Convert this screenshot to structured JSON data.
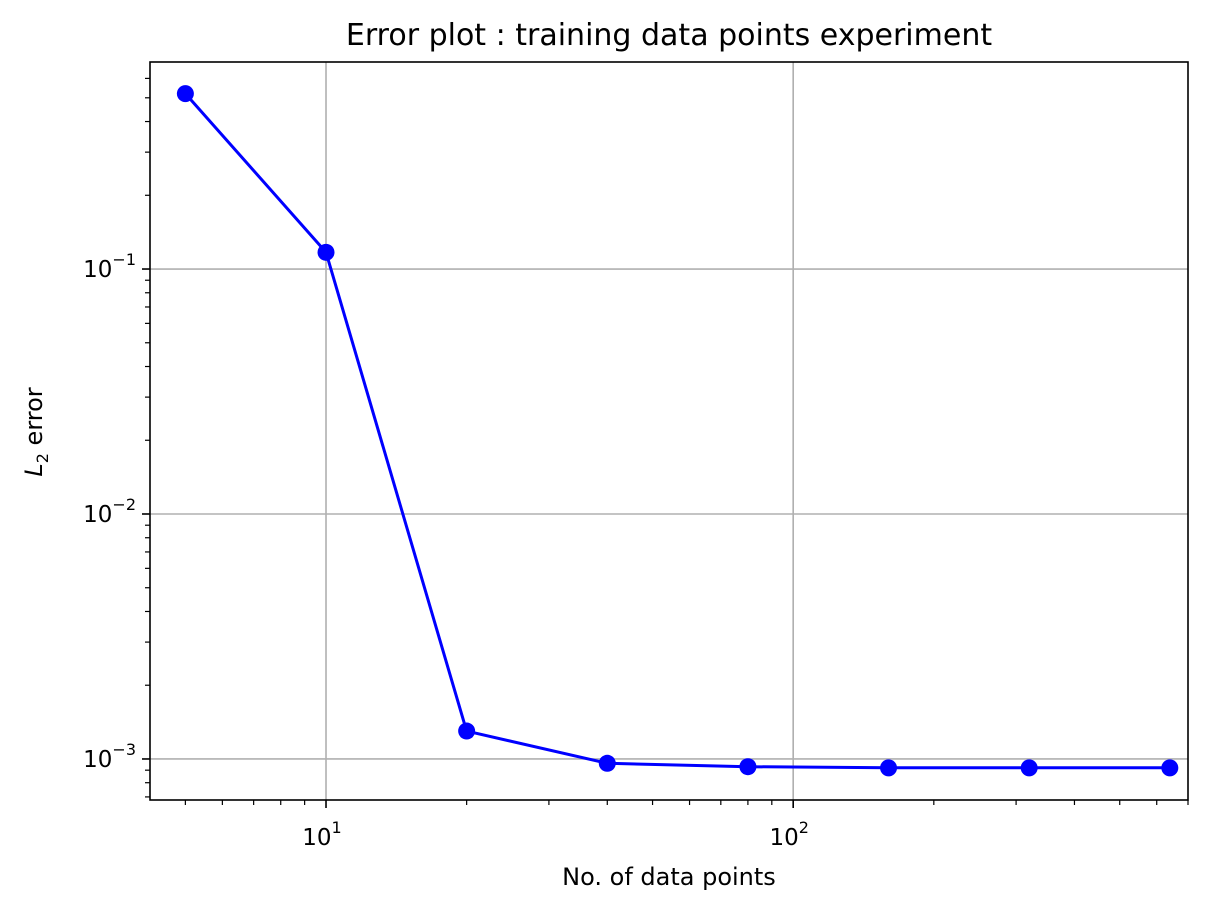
{
  "chart_data": {
    "type": "line",
    "title": "Error plot : training data points experiment",
    "xlabel": "No. of data points",
    "ylabel_main": "L",
    "ylabel_sub": "2",
    "ylabel_rest": " error",
    "xscale": "log",
    "yscale": "log",
    "xlim": [
      4.2,
      700
    ],
    "ylim": [
      0.00068,
      0.7
    ],
    "grid": true,
    "x_ticks": [
      {
        "value": 10,
        "base": "10",
        "exp": "1"
      },
      {
        "value": 100,
        "base": "10",
        "exp": "2"
      }
    ],
    "y_ticks": [
      {
        "value": 0.1,
        "base": "10",
        "exp": "−1"
      },
      {
        "value": 0.01,
        "base": "10",
        "exp": "−2"
      },
      {
        "value": 0.001,
        "base": "10",
        "exp": "−3"
      }
    ],
    "series": [
      {
        "color": "#0000ff",
        "marker": "circle",
        "x": [
          5,
          10,
          20,
          40,
          80,
          160,
          320,
          640
        ],
        "y": [
          0.52,
          0.117,
          0.0013,
          0.00096,
          0.00093,
          0.00092,
          0.00092,
          0.00092
        ]
      }
    ]
  }
}
